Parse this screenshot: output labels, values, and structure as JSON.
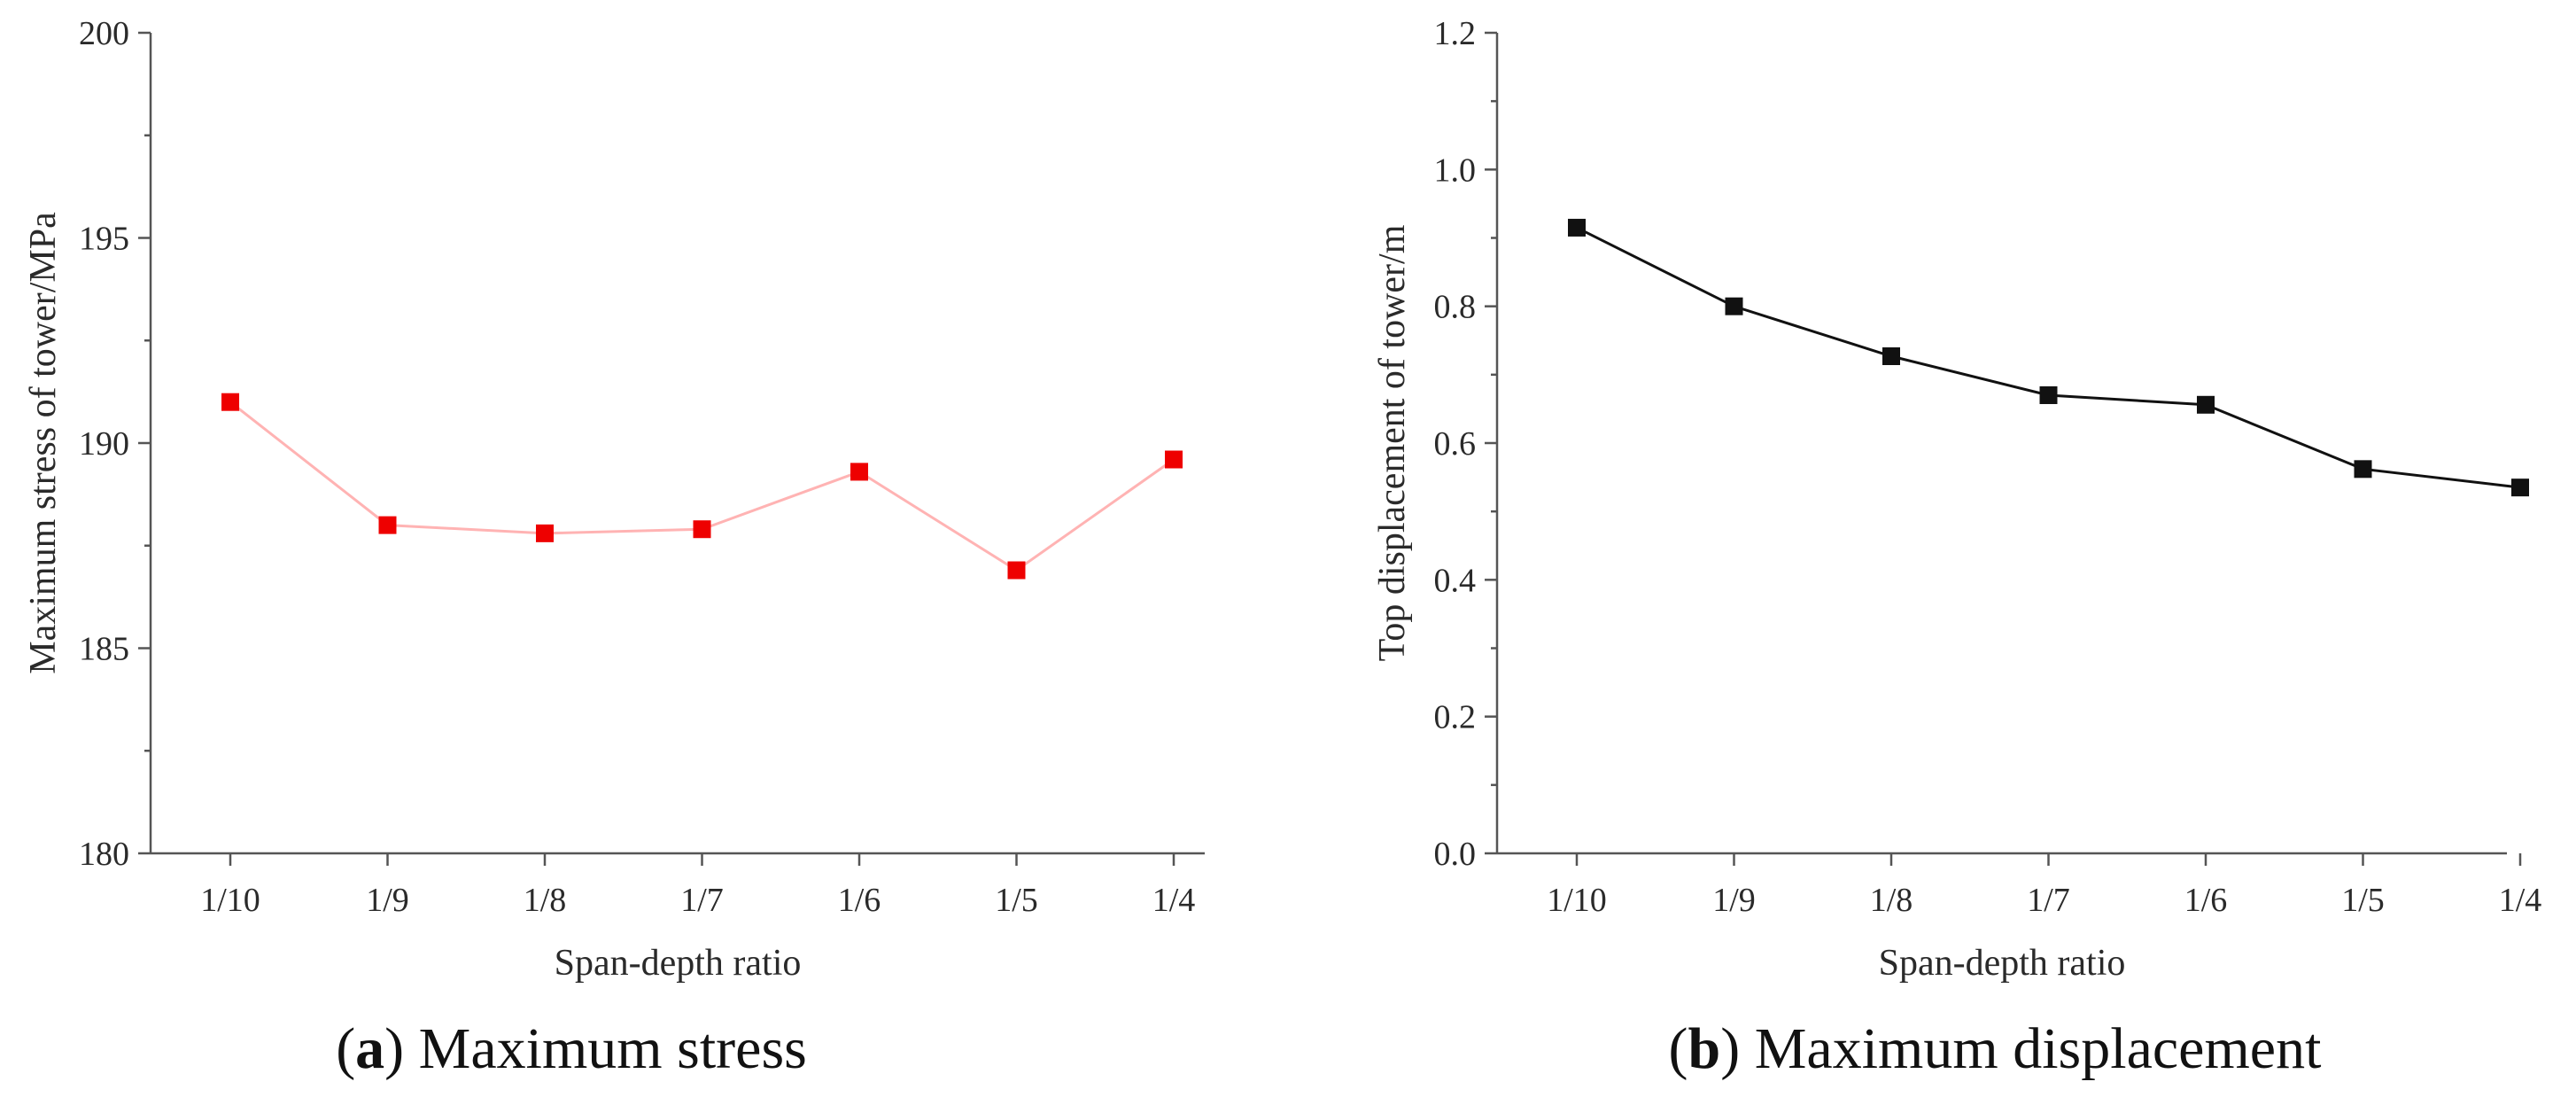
{
  "chart_data": [
    {
      "type": "line",
      "panel": "a",
      "caption_letter": "a",
      "caption_text": " Maximum stress",
      "xlabel": "Span-depth ratio",
      "ylabel": "Maximum stress of tower/MPa",
      "categories": [
        "1/10",
        "1/9",
        "1/8",
        "1/7",
        "1/6",
        "1/5",
        "1/4"
      ],
      "ylim": [
        180,
        200
      ],
      "yticks": [
        180,
        185,
        190,
        195,
        200
      ],
      "ytick_decimals": 0,
      "grid": false,
      "legend": "none",
      "line_color": "#ffb3b3",
      "marker_color": "#ee0000",
      "series": [
        {
          "name": "Maximum stress",
          "values": [
            191.0,
            188.0,
            187.8,
            187.9,
            189.3,
            186.9,
            189.6
          ]
        }
      ]
    },
    {
      "type": "line",
      "panel": "b",
      "caption_letter": "b",
      "caption_text": " Maximum displacement",
      "xlabel": "Span-depth ratio",
      "ylabel": "Top displacement of tower/m",
      "categories": [
        "1/10",
        "1/9",
        "1/8",
        "1/7",
        "1/6",
        "1/5",
        "1/4"
      ],
      "ylim": [
        0.0,
        1.2
      ],
      "yticks": [
        0.0,
        0.2,
        0.4,
        0.6,
        0.8,
        1.0,
        1.2
      ],
      "ytick_decimals": 1,
      "grid": false,
      "legend": "none",
      "line_color": "#111111",
      "marker_color": "#111111",
      "series": [
        {
          "name": "Maximum displacement",
          "values": [
            0.915,
            0.8,
            0.727,
            0.67,
            0.656,
            0.562,
            0.535
          ]
        }
      ]
    }
  ]
}
